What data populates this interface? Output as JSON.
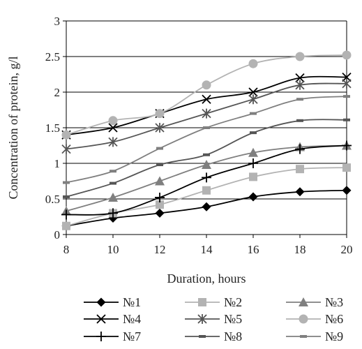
{
  "chart_data": {
    "type": "line",
    "xlabel": "Duration, hours",
    "ylabel": "Concentration of protein, g/l",
    "xlim": [
      8,
      20
    ],
    "ylim": [
      0,
      3
    ],
    "x": [
      8,
      10,
      12,
      14,
      16,
      18,
      20
    ],
    "x_ticks": [
      "8",
      "10",
      "12",
      "14",
      "16",
      "18",
      "20"
    ],
    "y_ticks": [
      "0",
      "0.5",
      "1",
      "1.5",
      "2",
      "2.5",
      "3"
    ],
    "y_tick_values": [
      0,
      0.5,
      1,
      1.5,
      2,
      2.5,
      3
    ],
    "grid": "horizontal",
    "legend_position": "bottom",
    "series": [
      {
        "name": "№1",
        "values": [
          0.12,
          0.23,
          0.3,
          0.39,
          0.53,
          0.6,
          0.62
        ],
        "color": "#000000",
        "marker": "diamond"
      },
      {
        "name": "№2",
        "values": [
          0.12,
          0.3,
          0.42,
          0.62,
          0.81,
          0.92,
          0.94
        ],
        "color": "#b3b3b3",
        "marker": "square"
      },
      {
        "name": "№3",
        "values": [
          0.33,
          0.52,
          0.75,
          0.98,
          1.15,
          1.23,
          1.25
        ],
        "color": "#7f7f7f",
        "marker": "triangle"
      },
      {
        "name": "№4",
        "values": [
          1.4,
          1.5,
          1.7,
          1.9,
          2.0,
          2.2,
          2.21
        ],
        "color": "#000000",
        "marker": "x"
      },
      {
        "name": "№5",
        "values": [
          1.2,
          1.3,
          1.5,
          1.7,
          1.9,
          2.1,
          2.12
        ],
        "color": "#555555",
        "marker": "star"
      },
      {
        "name": "№6",
        "values": [
          1.4,
          1.6,
          1.7,
          2.1,
          2.4,
          2.5,
          2.52
        ],
        "color": "#b3b3b3",
        "marker": "circle"
      },
      {
        "name": "№7",
        "values": [
          0.28,
          0.3,
          0.52,
          0.8,
          1.0,
          1.2,
          1.25
        ],
        "color": "#000000",
        "marker": "plus"
      },
      {
        "name": "№8",
        "values": [
          0.53,
          0.72,
          0.98,
          1.12,
          1.43,
          1.6,
          1.61
        ],
        "color": "#555555",
        "marker": "dash"
      },
      {
        "name": "№9",
        "values": [
          0.73,
          0.89,
          1.21,
          1.5,
          1.7,
          1.9,
          1.94
        ],
        "color": "#7f7f7f",
        "marker": "dash"
      }
    ]
  }
}
